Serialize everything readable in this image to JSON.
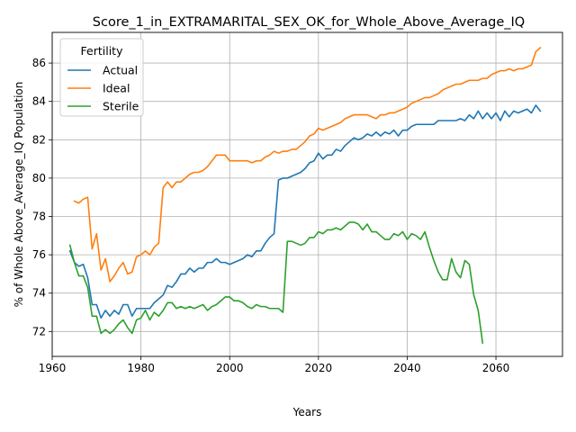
{
  "chart_data": {
    "type": "line",
    "title": "Score_1_in_EXTRAMARITAL_SEX_OK_for_Whole_Above_Average_IQ",
    "xlabel": "Years",
    "ylabel": "% of Whole Above_Average_IQ Population",
    "xlim": [
      1960,
      2075
    ],
    "ylim": [
      70.7,
      87.6
    ],
    "xticks": [
      1960,
      1980,
      2000,
      2020,
      2040,
      2060
    ],
    "yticks": [
      72,
      74,
      76,
      78,
      80,
      82,
      84,
      86
    ],
    "grid": true,
    "legend": {
      "title": "Fertility",
      "placement": "top-left"
    },
    "series": [
      {
        "name": "Actual",
        "color": "#1f77b4",
        "points": [
          [
            1964,
            76.2
          ],
          [
            1965,
            75.6
          ],
          [
            1966,
            75.4
          ],
          [
            1967,
            75.5
          ],
          [
            1968,
            74.8
          ],
          [
            1969,
            73.4
          ],
          [
            1970,
            73.4
          ],
          [
            1971,
            72.7
          ],
          [
            1972,
            73.1
          ],
          [
            1973,
            72.8
          ],
          [
            1974,
            73.1
          ],
          [
            1975,
            72.9
          ],
          [
            1976,
            73.4
          ],
          [
            1977,
            73.4
          ],
          [
            1978,
            72.8
          ],
          [
            1979,
            73.2
          ],
          [
            1980,
            73.2
          ],
          [
            1981,
            73.2
          ],
          [
            1982,
            73.2
          ],
          [
            1983,
            73.5
          ],
          [
            1984,
            73.7
          ],
          [
            1985,
            73.9
          ],
          [
            1986,
            74.4
          ],
          [
            1987,
            74.3
          ],
          [
            1988,
            74.6
          ],
          [
            1989,
            75.0
          ],
          [
            1990,
            75.0
          ],
          [
            1991,
            75.3
          ],
          [
            1992,
            75.1
          ],
          [
            1993,
            75.3
          ],
          [
            1994,
            75.3
          ],
          [
            1995,
            75.6
          ],
          [
            1996,
            75.6
          ],
          [
            1997,
            75.8
          ],
          [
            1998,
            75.6
          ],
          [
            1999,
            75.6
          ],
          [
            2000,
            75.5
          ],
          [
            2001,
            75.6
          ],
          [
            2002,
            75.7
          ],
          [
            2003,
            75.8
          ],
          [
            2004,
            76.0
          ],
          [
            2005,
            75.9
          ],
          [
            2006,
            76.2
          ],
          [
            2007,
            76.2
          ],
          [
            2008,
            76.6
          ],
          [
            2009,
            76.9
          ],
          [
            2010,
            77.1
          ],
          [
            2011,
            79.9
          ],
          [
            2012,
            80.0
          ],
          [
            2013,
            80.0
          ],
          [
            2014,
            80.1
          ],
          [
            2015,
            80.2
          ],
          [
            2016,
            80.3
          ],
          [
            2017,
            80.5
          ],
          [
            2018,
            80.8
          ],
          [
            2019,
            80.9
          ],
          [
            2020,
            81.3
          ],
          [
            2021,
            81.0
          ],
          [
            2022,
            81.2
          ],
          [
            2023,
            81.2
          ],
          [
            2024,
            81.5
          ],
          [
            2025,
            81.4
          ],
          [
            2026,
            81.7
          ],
          [
            2027,
            81.9
          ],
          [
            2028,
            82.1
          ],
          [
            2029,
            82.0
          ],
          [
            2030,
            82.1
          ],
          [
            2031,
            82.3
          ],
          [
            2032,
            82.2
          ],
          [
            2033,
            82.4
          ],
          [
            2034,
            82.2
          ],
          [
            2035,
            82.4
          ],
          [
            2036,
            82.3
          ],
          [
            2037,
            82.5
          ],
          [
            2038,
            82.2
          ],
          [
            2039,
            82.5
          ],
          [
            2040,
            82.5
          ],
          [
            2041,
            82.7
          ],
          [
            2042,
            82.8
          ],
          [
            2043,
            82.8
          ],
          [
            2044,
            82.8
          ],
          [
            2045,
            82.8
          ],
          [
            2046,
            82.8
          ],
          [
            2047,
            83.0
          ],
          [
            2048,
            83.0
          ],
          [
            2049,
            83.0
          ],
          [
            2050,
            83.0
          ],
          [
            2051,
            83.0
          ],
          [
            2052,
            83.1
          ],
          [
            2053,
            83.0
          ],
          [
            2054,
            83.3
          ],
          [
            2055,
            83.1
          ],
          [
            2056,
            83.5
          ],
          [
            2057,
            83.1
          ],
          [
            2058,
            83.4
          ],
          [
            2059,
            83.1
          ],
          [
            2060,
            83.4
          ],
          [
            2061,
            83.0
          ],
          [
            2062,
            83.5
          ],
          [
            2063,
            83.2
          ],
          [
            2064,
            83.5
          ],
          [
            2065,
            83.4
          ],
          [
            2066,
            83.5
          ],
          [
            2067,
            83.6
          ],
          [
            2068,
            83.4
          ],
          [
            2069,
            83.8
          ],
          [
            2070,
            83.5
          ]
        ]
      },
      {
        "name": "Ideal",
        "color": "#ff7f0e",
        "points": [
          [
            1965,
            78.8
          ],
          [
            1966,
            78.7
          ],
          [
            1967,
            78.9
          ],
          [
            1968,
            79.0
          ],
          [
            1969,
            76.3
          ],
          [
            1970,
            77.1
          ],
          [
            1971,
            75.2
          ],
          [
            1972,
            75.8
          ],
          [
            1973,
            74.6
          ],
          [
            1974,
            74.9
          ],
          [
            1975,
            75.3
          ],
          [
            1976,
            75.6
          ],
          [
            1977,
            75.0
          ],
          [
            1978,
            75.1
          ],
          [
            1979,
            75.9
          ],
          [
            1980,
            76.0
          ],
          [
            1981,
            76.2
          ],
          [
            1982,
            76.0
          ],
          [
            1983,
            76.4
          ],
          [
            1984,
            76.6
          ],
          [
            1985,
            79.5
          ],
          [
            1986,
            79.8
          ],
          [
            1987,
            79.5
          ],
          [
            1988,
            79.8
          ],
          [
            1989,
            79.8
          ],
          [
            1990,
            80.0
          ],
          [
            1991,
            80.2
          ],
          [
            1992,
            80.3
          ],
          [
            1993,
            80.3
          ],
          [
            1994,
            80.4
          ],
          [
            1995,
            80.6
          ],
          [
            1996,
            80.9
          ],
          [
            1997,
            81.2
          ],
          [
            1998,
            81.2
          ],
          [
            1999,
            81.2
          ],
          [
            2000,
            80.9
          ],
          [
            2001,
            80.9
          ],
          [
            2002,
            80.9
          ],
          [
            2003,
            80.9
          ],
          [
            2004,
            80.9
          ],
          [
            2005,
            80.8
          ],
          [
            2006,
            80.9
          ],
          [
            2007,
            80.9
          ],
          [
            2008,
            81.1
          ],
          [
            2009,
            81.2
          ],
          [
            2010,
            81.4
          ],
          [
            2011,
            81.3
          ],
          [
            2012,
            81.4
          ],
          [
            2013,
            81.4
          ],
          [
            2014,
            81.5
          ],
          [
            2015,
            81.5
          ],
          [
            2016,
            81.7
          ],
          [
            2017,
            81.9
          ],
          [
            2018,
            82.2
          ],
          [
            2019,
            82.3
          ],
          [
            2020,
            82.6
          ],
          [
            2021,
            82.5
          ],
          [
            2022,
            82.6
          ],
          [
            2023,
            82.7
          ],
          [
            2024,
            82.8
          ],
          [
            2025,
            82.9
          ],
          [
            2026,
            83.1
          ],
          [
            2027,
            83.2
          ],
          [
            2028,
            83.3
          ],
          [
            2029,
            83.3
          ],
          [
            2030,
            83.3
          ],
          [
            2031,
            83.3
          ],
          [
            2032,
            83.2
          ],
          [
            2033,
            83.1
          ],
          [
            2034,
            83.3
          ],
          [
            2035,
            83.3
          ],
          [
            2036,
            83.4
          ],
          [
            2037,
            83.4
          ],
          [
            2038,
            83.5
          ],
          [
            2039,
            83.6
          ],
          [
            2040,
            83.7
          ],
          [
            2041,
            83.9
          ],
          [
            2042,
            84.0
          ],
          [
            2043,
            84.1
          ],
          [
            2044,
            84.2
          ],
          [
            2045,
            84.2
          ],
          [
            2046,
            84.3
          ],
          [
            2047,
            84.4
          ],
          [
            2048,
            84.6
          ],
          [
            2049,
            84.7
          ],
          [
            2050,
            84.8
          ],
          [
            2051,
            84.9
          ],
          [
            2052,
            84.9
          ],
          [
            2053,
            85.0
          ],
          [
            2054,
            85.1
          ],
          [
            2055,
            85.1
          ],
          [
            2056,
            85.1
          ],
          [
            2057,
            85.2
          ],
          [
            2058,
            85.2
          ],
          [
            2059,
            85.4
          ],
          [
            2060,
            85.5
          ],
          [
            2061,
            85.6
          ],
          [
            2062,
            85.6
          ],
          [
            2063,
            85.7
          ],
          [
            2064,
            85.6
          ],
          [
            2065,
            85.7
          ],
          [
            2066,
            85.7
          ],
          [
            2067,
            85.8
          ],
          [
            2068,
            85.9
          ],
          [
            2069,
            86.6
          ],
          [
            2070,
            86.8
          ]
        ]
      },
      {
        "name": "Sterile",
        "color": "#2ca02c",
        "points": [
          [
            1964,
            76.5
          ],
          [
            1965,
            75.6
          ],
          [
            1966,
            74.9
          ],
          [
            1967,
            74.9
          ],
          [
            1968,
            74.3
          ],
          [
            1969,
            72.8
          ],
          [
            1970,
            72.8
          ],
          [
            1971,
            71.9
          ],
          [
            1972,
            72.1
          ],
          [
            1973,
            71.9
          ],
          [
            1974,
            72.1
          ],
          [
            1975,
            72.4
          ],
          [
            1976,
            72.6
          ],
          [
            1977,
            72.2
          ],
          [
            1978,
            71.9
          ],
          [
            1979,
            72.6
          ],
          [
            1980,
            72.7
          ],
          [
            1981,
            73.1
          ],
          [
            1982,
            72.6
          ],
          [
            1983,
            73.0
          ],
          [
            1984,
            72.8
          ],
          [
            1985,
            73.1
          ],
          [
            1986,
            73.5
          ],
          [
            1987,
            73.5
          ],
          [
            1988,
            73.2
          ],
          [
            1989,
            73.3
          ],
          [
            1990,
            73.2
          ],
          [
            1991,
            73.3
          ],
          [
            1992,
            73.2
          ],
          [
            1993,
            73.3
          ],
          [
            1994,
            73.4
          ],
          [
            1995,
            73.1
          ],
          [
            1996,
            73.3
          ],
          [
            1997,
            73.4
          ],
          [
            1998,
            73.6
          ],
          [
            1999,
            73.8
          ],
          [
            2000,
            73.8
          ],
          [
            2001,
            73.6
          ],
          [
            2002,
            73.6
          ],
          [
            2003,
            73.5
          ],
          [
            2004,
            73.3
          ],
          [
            2005,
            73.2
          ],
          [
            2006,
            73.4
          ],
          [
            2007,
            73.3
          ],
          [
            2008,
            73.3
          ],
          [
            2009,
            73.2
          ],
          [
            2010,
            73.2
          ],
          [
            2011,
            73.2
          ],
          [
            2012,
            73.0
          ],
          [
            2013,
            76.7
          ],
          [
            2014,
            76.7
          ],
          [
            2015,
            76.6
          ],
          [
            2016,
            76.5
          ],
          [
            2017,
            76.6
          ],
          [
            2018,
            76.9
          ],
          [
            2019,
            76.9
          ],
          [
            2020,
            77.2
          ],
          [
            2021,
            77.1
          ],
          [
            2022,
            77.3
          ],
          [
            2023,
            77.3
          ],
          [
            2024,
            77.4
          ],
          [
            2025,
            77.3
          ],
          [
            2026,
            77.5
          ],
          [
            2027,
            77.7
          ],
          [
            2028,
            77.7
          ],
          [
            2029,
            77.6
          ],
          [
            2030,
            77.3
          ],
          [
            2031,
            77.6
          ],
          [
            2032,
            77.2
          ],
          [
            2033,
            77.2
          ],
          [
            2034,
            77.0
          ],
          [
            2035,
            76.8
          ],
          [
            2036,
            76.8
          ],
          [
            2037,
            77.1
          ],
          [
            2038,
            77.0
          ],
          [
            2039,
            77.2
          ],
          [
            2040,
            76.8
          ],
          [
            2041,
            77.1
          ],
          [
            2042,
            77.0
          ],
          [
            2043,
            76.8
          ],
          [
            2044,
            77.2
          ],
          [
            2045,
            76.4
          ],
          [
            2046,
            75.7
          ],
          [
            2047,
            75.1
          ],
          [
            2048,
            74.7
          ],
          [
            2049,
            74.7
          ],
          [
            2050,
            75.8
          ],
          [
            2051,
            75.1
          ],
          [
            2052,
            74.8
          ],
          [
            2053,
            75.7
          ],
          [
            2054,
            75.5
          ],
          [
            2055,
            73.9
          ],
          [
            2056,
            73.1
          ],
          [
            2057,
            71.4
          ]
        ]
      }
    ]
  }
}
